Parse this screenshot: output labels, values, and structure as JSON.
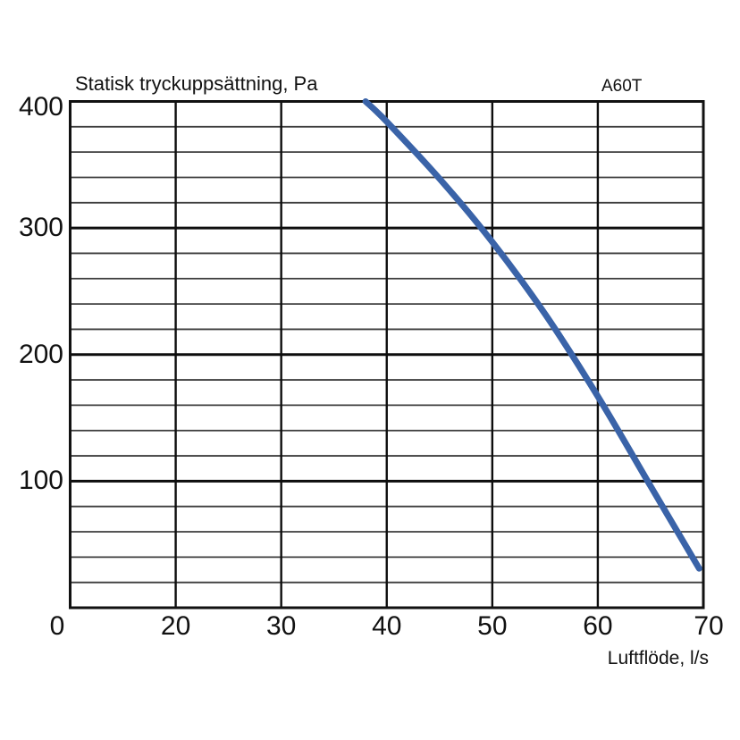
{
  "chart_data": {
    "type": "line",
    "title": "Statisk tryckuppsättning, Pa",
    "annotation": "A60T",
    "xlabel": "Luftflöde, l/s",
    "x_ticks": [
      0,
      20,
      30,
      40,
      50,
      60,
      70
    ],
    "x_axis_note": "non-linear scale: one grid division spans 0-20, then 10 l/s per division",
    "y_major_ticks": [
      100,
      200,
      300,
      400
    ],
    "y_minor_step": 20,
    "ylim": [
      0,
      400
    ],
    "grid": true,
    "legend_position": "none",
    "series": [
      {
        "name": "A60T fan curve",
        "color": "#3a63a8",
        "points": [
          [
            38.0,
            400
          ],
          [
            40.0,
            384
          ],
          [
            45.0,
            339
          ],
          [
            50.0,
            289
          ],
          [
            55.0,
            232
          ],
          [
            60.0,
            167
          ],
          [
            65.0,
            96
          ],
          [
            69.6,
            31
          ]
        ]
      }
    ]
  },
  "colors": {
    "background": "#ffffff",
    "curve": "#3a63a8",
    "grid_minor": "#3d3d3d",
    "grid_major": "#0d0d0d",
    "frame": "#111111",
    "text": "#111111"
  }
}
